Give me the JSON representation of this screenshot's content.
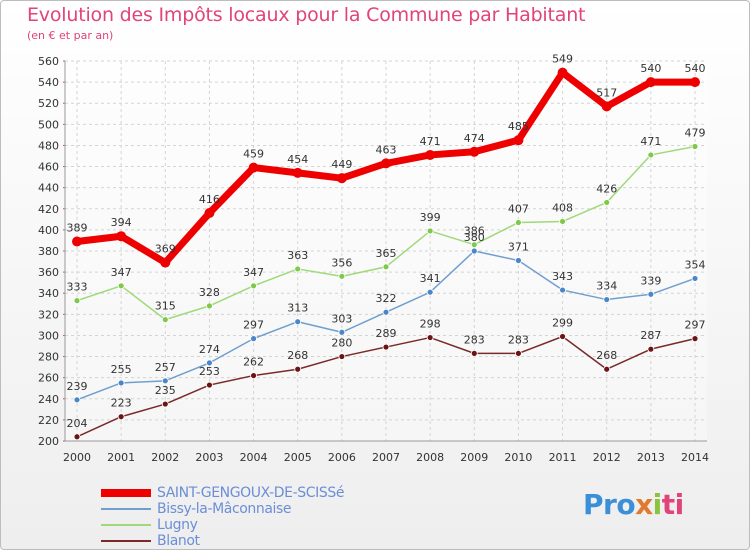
{
  "title": "Evolution des Impôts locaux pour la Commune par Habitant",
  "subtitle": "(en € et par an)",
  "logo": {
    "text": "Proxiti",
    "parts": [
      "Pro",
      "x",
      "i",
      "ti"
    ]
  },
  "chart_data": {
    "type": "line",
    "title": "Evolution des Impôts locaux pour la Commune par Habitant",
    "subtitle": "(en € et par an)",
    "xlabel": "",
    "ylabel": "",
    "ylim": [
      200,
      560
    ],
    "yticks": [
      200,
      220,
      240,
      260,
      280,
      300,
      320,
      340,
      360,
      380,
      400,
      420,
      440,
      460,
      480,
      500,
      520,
      540,
      560
    ],
    "grid": true,
    "legend_position": "bottom-left",
    "categories": [
      "2000",
      "2001",
      "2002",
      "2003",
      "2004",
      "2005",
      "2006",
      "2007",
      "2008",
      "2009",
      "2010",
      "2011",
      "2012",
      "2013",
      "2014"
    ],
    "series": [
      {
        "name": "SAINT-GENGOUX-DE-SCISSé",
        "color": "#ee0000",
        "marker": "#ee0000",
        "highlight": true,
        "values": [
          389,
          394,
          369,
          416,
          459,
          454,
          449,
          463,
          471,
          474,
          485,
          549,
          517,
          540,
          540
        ]
      },
      {
        "name": "Bissy-la-Mâconnaise",
        "color": "#6f9fcf",
        "marker": "#4a86c8",
        "values": [
          239,
          255,
          257,
          274,
          297,
          313,
          303,
          322,
          341,
          380,
          371,
          343,
          334,
          339,
          354
        ]
      },
      {
        "name": "Lugny",
        "color": "#9fd97a",
        "marker": "#7fc94a",
        "values": [
          333,
          347,
          315,
          328,
          347,
          363,
          356,
          365,
          399,
          386,
          407,
          408,
          426,
          471,
          479
        ]
      },
      {
        "name": "Blanot",
        "color": "#7a2a2a",
        "marker": "#6a1414",
        "values": [
          204,
          223,
          235,
          253,
          262,
          268,
          280,
          289,
          298,
          283,
          283,
          299,
          268,
          287,
          297
        ]
      }
    ]
  }
}
